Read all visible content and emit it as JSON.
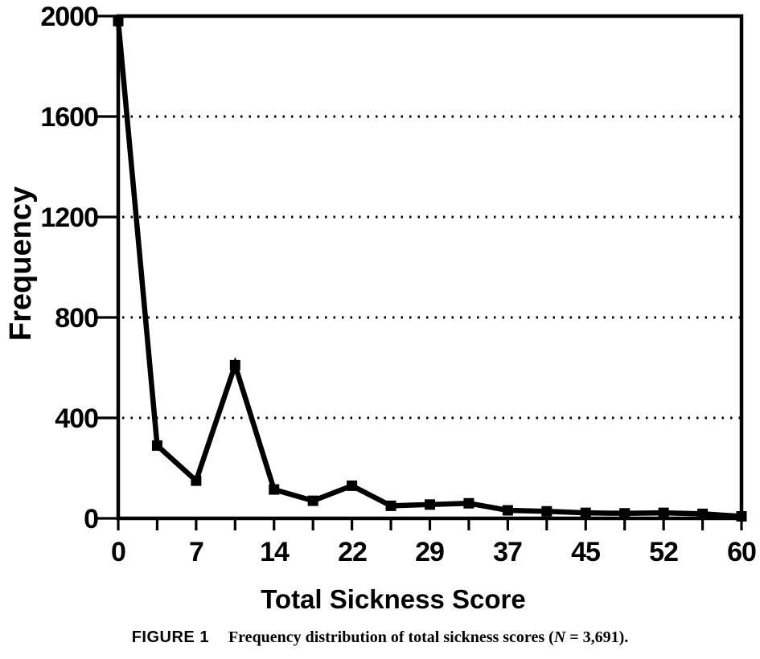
{
  "page": {
    "background_color": "#ffffff",
    "ink_color": "#000000"
  },
  "chart_data": {
    "type": "line",
    "title": "",
    "xlabel": "Total Sickness Score",
    "ylabel": "Frequency",
    "x_tick_labels": [
      "0",
      "7",
      "14",
      "22",
      "29",
      "37",
      "45",
      "52",
      "60"
    ],
    "y_tick_labels": [
      "0",
      "400",
      "800",
      "1200",
      "1600",
      "2000"
    ],
    "y_tick_values": [
      0,
      400,
      800,
      1200,
      1600,
      2000
    ],
    "gridline_values": [
      400,
      800,
      1200,
      1600
    ],
    "grid_style": "dotted",
    "ylim": [
      0,
      2000
    ],
    "xlim": [
      0,
      60
    ],
    "x_values_approx": [
      0,
      4,
      7,
      11,
      14,
      18,
      22,
      26,
      29,
      33,
      37,
      41,
      45,
      48,
      52,
      56,
      60
    ],
    "values": [
      1980,
      290,
      150,
      610,
      115,
      70,
      130,
      50,
      55,
      60,
      32,
      28,
      22,
      20,
      22,
      18,
      8
    ],
    "labeled_tick_every": 2,
    "marker": "square",
    "line_color": "#000000",
    "legend": "none",
    "frame": "full-box"
  },
  "caption": {
    "figure_label": "FIGURE 1",
    "text_before_n": "Frequency distribution of total sickness scores (",
    "n_symbol": "N",
    "text_after_n": " = 3,691)."
  }
}
